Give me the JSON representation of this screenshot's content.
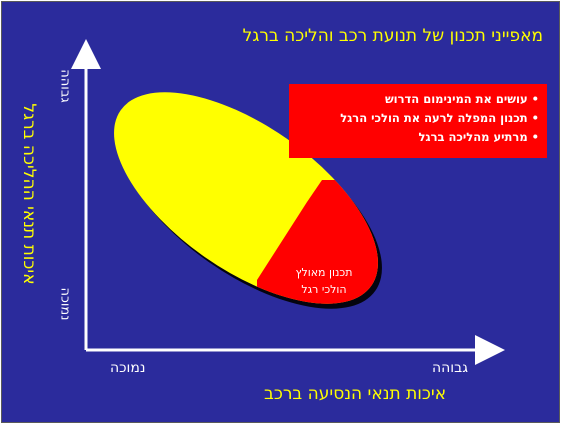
{
  "title": "מאפייני תכנון  של תנועת רכב והליכה ברגל",
  "bullets": [
    "עושים את המינימום הדרוש",
    "תכנון המפלה לרעה את הולכי הרגל",
    "מרתיע מהליכה ברגל"
  ],
  "inner_label_line1": "תכנון מאולץ",
  "inner_label_line2": "הולכי רגל",
  "y_axis_title": "איכות תנאי  ההליכה ברגל",
  "y_high_label": "גבוהה",
  "y_low_label": "נמוכה",
  "x_high_label": "גבוהה",
  "x_low_label": "נמוכה",
  "x_axis_title": "איכות תנאי הנסיעה ברכב",
  "colors": {
    "background": "#2b2b9c",
    "ellipse_main": "#ffff00",
    "ellipse_highlight": "#ff0000",
    "bullet_box": "#ff0000",
    "axis": "#ffffff",
    "title_text": "#ffff00"
  }
}
